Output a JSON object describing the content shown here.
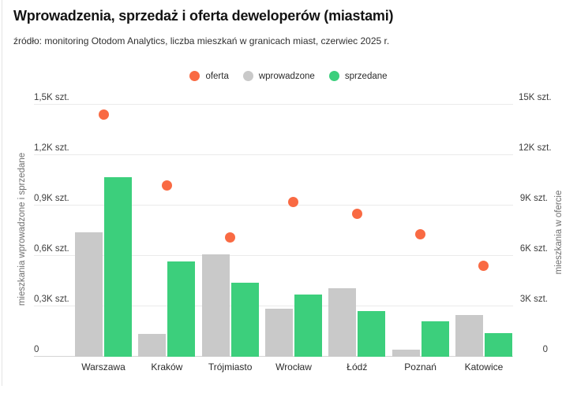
{
  "header": {
    "title": "Wprowadzenia, sprzedaż i oferta deweloperów (miastami)",
    "subtitle": "źródło: monitoring Otodom Analytics, liczba mieszkań w granicach miast, czerwiec 2025 r."
  },
  "legend": [
    {
      "label": "oferta",
      "color": "#f96a43"
    },
    {
      "label": "wprowadzone",
      "color": "#c9c9c9"
    },
    {
      "label": "sprzedane",
      "color": "#3ccf7c"
    }
  ],
  "chart_data": {
    "type": "bar",
    "categories": [
      "Warszawa",
      "Kraków",
      "Trójmiasto",
      "Wrocław",
      "Łódź",
      "Poznań",
      "Katowice"
    ],
    "series": [
      {
        "name": "wprowadzone",
        "type": "bar",
        "axis": "left",
        "color": "#c9c9c9",
        "values": [
          740,
          135,
          610,
          285,
          405,
          40,
          245
        ]
      },
      {
        "name": "sprzedane",
        "type": "bar",
        "axis": "left",
        "color": "#3ccf7c",
        "values": [
          1070,
          565,
          440,
          370,
          270,
          210,
          140
        ]
      },
      {
        "name": "oferta",
        "type": "scatter",
        "axis": "right",
        "color": "#f96a43",
        "values": [
          14400,
          10200,
          7100,
          9200,
          8500,
          7300,
          5400
        ]
      }
    ],
    "left_axis": {
      "label": "mieszkania wprowadzone i sprzedane",
      "ticks": [
        "0",
        "0,3K szt.",
        "0,6K szt.",
        "0,9K szt.",
        "1,2K szt.",
        "1,5K szt."
      ],
      "min": 0,
      "max": 1500
    },
    "right_axis": {
      "label": "mieszkania w ofercie",
      "ticks": [
        "0",
        "3K szt.",
        "6K szt.",
        "9K szt.",
        "12K szt.",
        "15K szt."
      ],
      "min": 0,
      "max": 15000
    },
    "grid": true,
    "legend_position": "top-center"
  }
}
